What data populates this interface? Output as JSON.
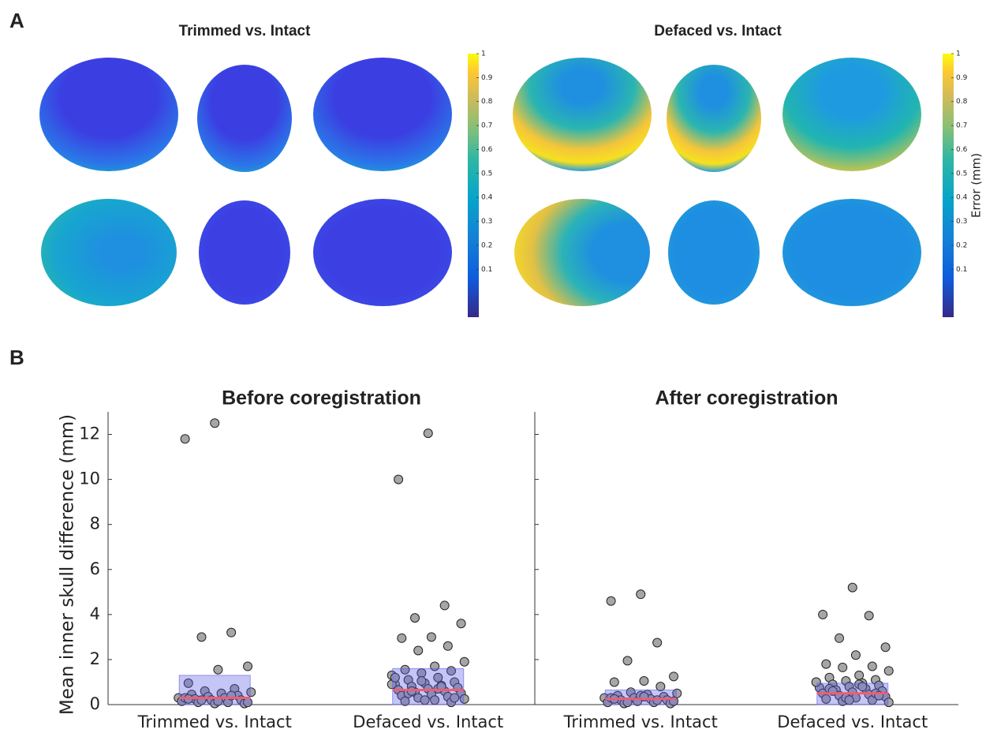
{
  "panel_a": {
    "label": "A",
    "titles": [
      "Trimmed vs. Intact",
      "Defaced vs. Intact"
    ],
    "colorbar": {
      "lim": [
        -0.1,
        1
      ],
      "ticks": [
        0.1,
        0.2,
        0.3,
        0.4,
        0.5,
        0.6,
        0.7,
        0.8,
        0.9,
        1
      ],
      "label": "Error (mm)"
    }
  },
  "panel_b_label": "B",
  "chart_data": [
    {
      "type": "strip",
      "title": "Before coregistration",
      "ylabel": "Mean inner skull difference (mm)",
      "categories": [
        "Trimmed vs. Intact",
        "Defaced vs. Intact"
      ],
      "ylim": [
        0,
        13
      ],
      "yticks": [
        0,
        2,
        4,
        6,
        8,
        10,
        12
      ],
      "box_low": [
        0,
        0
      ],
      "box_high": [
        1.3,
        1.6
      ],
      "median": [
        0.3,
        0.65
      ],
      "points": [
        [
          12.5,
          11.8,
          3.2,
          3.0,
          1.7,
          1.55,
          0.95,
          0.7,
          0.6,
          0.55,
          0.5,
          0.45,
          0.4,
          0.35,
          0.3,
          0.3,
          0.25,
          0.2,
          0.2,
          0.15,
          0.1,
          0.1,
          0.05,
          0.05,
          0.3,
          0.4,
          0.2,
          0.1,
          0.15,
          0.25
        ],
        [
          12.05,
          10.0,
          4.4,
          3.85,
          3.6,
          3.0,
          2.95,
          2.6,
          2.4,
          1.9,
          1.7,
          1.55,
          1.5,
          1.4,
          1.3,
          1.2,
          1.1,
          1.0,
          0.95,
          0.9,
          0.85,
          0.8,
          0.75,
          0.7,
          0.65,
          0.6,
          0.55,
          0.5,
          0.45,
          0.4,
          0.35,
          0.3,
          0.25,
          0.2,
          0.15,
          0.1,
          1.05,
          0.9,
          0.7,
          0.5,
          0.3,
          0.2,
          1.2,
          0.8,
          0.6
        ]
      ]
    },
    {
      "type": "strip",
      "title": "After coregistration",
      "categories": [
        "Trimmed vs. Intact",
        "Defaced vs. Intact"
      ],
      "ylim": [
        0,
        13
      ],
      "yticks": [
        0,
        2,
        4,
        6,
        8,
        10,
        12
      ],
      "box_low": [
        0,
        0
      ],
      "box_high": [
        0.65,
        0.95
      ],
      "median": [
        0.25,
        0.5
      ],
      "points": [
        [
          4.9,
          4.6,
          2.75,
          1.95,
          1.25,
          1.05,
          1.0,
          0.8,
          0.55,
          0.5,
          0.45,
          0.4,
          0.35,
          0.3,
          0.3,
          0.25,
          0.2,
          0.2,
          0.15,
          0.1,
          0.1,
          0.05,
          0.05,
          0.4,
          0.3,
          0.2,
          0.1,
          0.15,
          0.35,
          0.25
        ],
        [
          5.2,
          4.0,
          3.95,
          2.95,
          2.55,
          2.2,
          1.8,
          1.7,
          1.65,
          1.5,
          1.3,
          1.2,
          1.1,
          1.05,
          1.0,
          0.95,
          0.9,
          0.85,
          0.8,
          0.75,
          0.7,
          0.65,
          0.6,
          0.55,
          0.5,
          0.45,
          0.4,
          0.35,
          0.3,
          0.25,
          0.2,
          0.15,
          0.1,
          0.9,
          0.7,
          0.5,
          0.3,
          1.0,
          0.8,
          0.6,
          0.4,
          0.2
        ]
      ]
    }
  ]
}
